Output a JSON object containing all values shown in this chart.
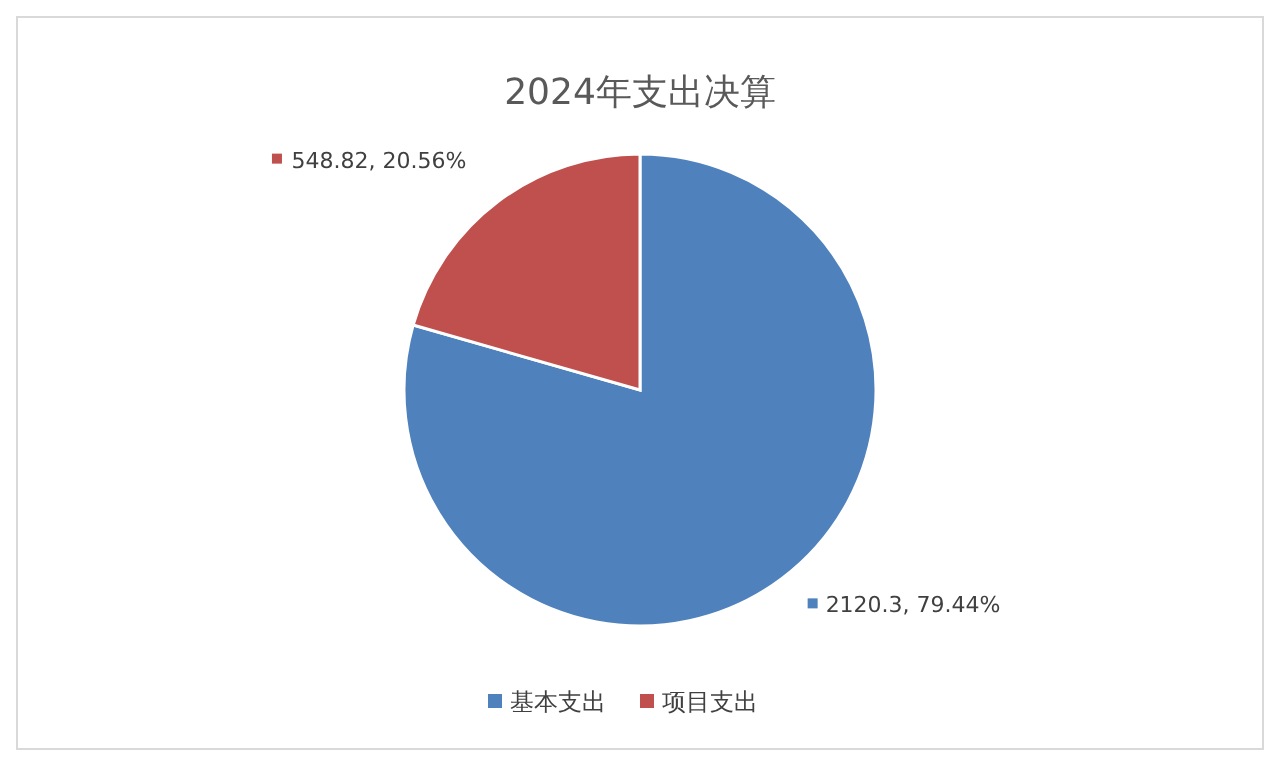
{
  "chart_data": {
    "type": "pie",
    "title": "2024年支出决算",
    "categories": [
      "基本支出",
      "项目支出"
    ],
    "values": [
      2120.3,
      548.82
    ],
    "value_labels": [
      "2120.3, 79.44%",
      "548.82, 20.56%"
    ],
    "colors": [
      "#4f81bd",
      "#c0504d"
    ],
    "legend": "bottom"
  }
}
